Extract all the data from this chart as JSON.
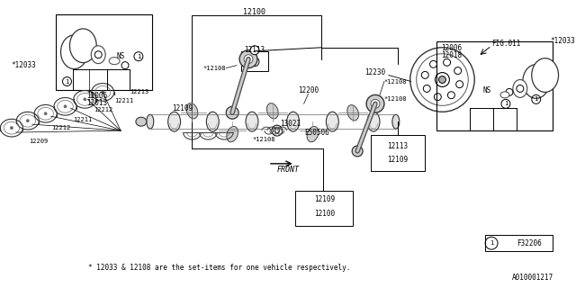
{
  "background_color": "#ffffff",
  "line_color": "#000000",
  "text_color": "#000000",
  "fig_width": 6.4,
  "fig_height": 3.2,
  "dpi": 100,
  "footnote": "* 12033 & 12108 are the set-items for one vehicle respectively.",
  "ref_code": "A010001217",
  "fig_label": "F32206"
}
